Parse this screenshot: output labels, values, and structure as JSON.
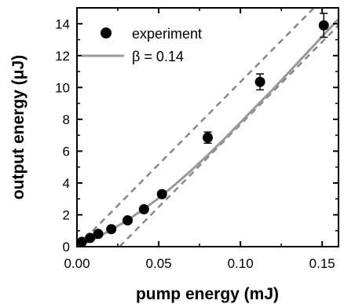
{
  "chart_data": {
    "type": "scatter",
    "title": "",
    "xlabel": "pump energy (mJ)",
    "ylabel": "output energy (μJ)",
    "xlim": [
      0,
      0.16
    ],
    "ylim": [
      0,
      15
    ],
    "x_ticks": [
      0.0,
      0.05,
      0.1,
      0.15
    ],
    "x_tick_labels": [
      "0.00",
      "0.05",
      "0.10",
      "0.15"
    ],
    "y_ticks": [
      0,
      2,
      4,
      6,
      8,
      10,
      12,
      14
    ],
    "y_tick_labels": [
      "0",
      "2",
      "4",
      "6",
      "8",
      "10",
      "12",
      "14"
    ],
    "grid": false,
    "legend_position": "top-left",
    "series": [
      {
        "name": "experiment",
        "kind": "points",
        "color": "#000000",
        "x": [
          0.003,
          0.008,
          0.013,
          0.021,
          0.031,
          0.041,
          0.052,
          0.08,
          0.112,
          0.151
        ],
        "y": [
          0.3,
          0.55,
          0.8,
          1.1,
          1.65,
          2.35,
          3.3,
          6.85,
          10.35,
          13.9
        ],
        "y_err": [
          0.1,
          0.1,
          0.1,
          0.1,
          0.1,
          0.15,
          0.2,
          0.35,
          0.5,
          0.75
        ]
      },
      {
        "name": "β = 0.14",
        "kind": "line",
        "color": "#999999",
        "x": [
          0,
          0.01,
          0.02,
          0.03,
          0.04,
          0.05,
          0.06,
          0.07,
          0.08,
          0.09,
          0.1,
          0.11,
          0.12,
          0.13,
          0.14,
          0.15,
          0.16
        ],
        "y": [
          0,
          0.45,
          1.0,
          1.6,
          2.3,
          3.05,
          3.9,
          4.8,
          5.75,
          6.75,
          7.8,
          8.85,
          9.9,
          11.0,
          12.1,
          13.2,
          14.3
        ]
      },
      {
        "kind": "dashed",
        "color": "#888888",
        "x": [
          0,
          0.145
        ],
        "y": [
          0,
          15
        ]
      },
      {
        "kind": "dashed",
        "color": "#888888",
        "x": [
          0.026,
          0.16
        ],
        "y": [
          0,
          13.9
        ]
      }
    ]
  }
}
